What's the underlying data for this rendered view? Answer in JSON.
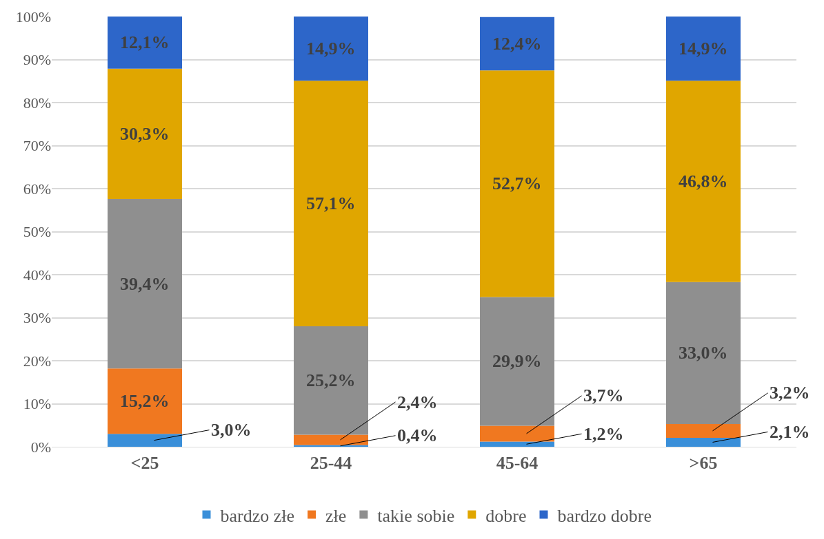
{
  "chart_data": {
    "type": "bar",
    "stacked": true,
    "categories": [
      "<25",
      "25-44",
      "45-64",
      ">65"
    ],
    "series": [
      {
        "name": "bardzo złe",
        "color": "#3a8fd9",
        "values": [
          3.0,
          0.4,
          1.2,
          2.1
        ],
        "value_labels": [
          "3,0%",
          "0,4%",
          "1,2%",
          "2,1%"
        ]
      },
      {
        "name": "złe",
        "color": "#f07820",
        "values": [
          15.2,
          2.4,
          3.7,
          3.2
        ],
        "value_labels": [
          "15,2%",
          "2,4%",
          "3,7%",
          "3,2%"
        ]
      },
      {
        "name": "takie sobie",
        "color": "#8f8f8f",
        "values": [
          39.4,
          25.2,
          29.9,
          33.0
        ],
        "value_labels": [
          "39,4%",
          "25,2%",
          "29,9%",
          "33,0%"
        ]
      },
      {
        "name": "dobre",
        "color": "#e0a600",
        "values": [
          30.3,
          57.1,
          52.7,
          46.8
        ],
        "value_labels": [
          "30,3%",
          "57,1%",
          "52,7%",
          "46,8%"
        ]
      },
      {
        "name": "bardzo dobre",
        "color": "#2d66c9",
        "values": [
          12.1,
          14.9,
          12.4,
          14.9
        ],
        "value_labels": [
          "12,1%",
          "14,9%",
          "12,4%",
          "14,9%"
        ]
      }
    ],
    "ylim": [
      0,
      100
    ],
    "yticks": [
      {
        "value": 0,
        "label": "0%"
      },
      {
        "value": 10,
        "label": "10%"
      },
      {
        "value": 20,
        "label": "20%"
      },
      {
        "value": 30,
        "label": "30%"
      },
      {
        "value": 40,
        "label": "40%"
      },
      {
        "value": 50,
        "label": "50%"
      },
      {
        "value": 60,
        "label": "60%"
      },
      {
        "value": 70,
        "label": "70%"
      },
      {
        "value": 80,
        "label": "80%"
      },
      {
        "value": 90,
        "label": "90%"
      },
      {
        "value": 100,
        "label": "100%"
      }
    ],
    "grid": "y",
    "legend": "bottom"
  }
}
